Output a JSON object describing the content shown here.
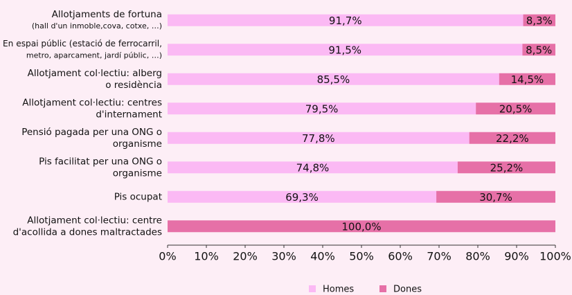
{
  "chart_data": {
    "type": "stacked-barh",
    "categories": [
      [
        "Allotjaments de fortuna",
        "(hall d'un inmoble,cova, cotxe, …)"
      ],
      [
        "En espai públic (estació de ferrocarril,",
        "metro, aparcament, jardí públic, …)"
      ],
      [
        "Allotjament col·lectiu: alberg",
        "o residència"
      ],
      [
        "Allotjament col·lectiu: centres",
        "d'internament"
      ],
      [
        "Pensió pagada per una ONG o",
        "organisme"
      ],
      [
        "Pis facilitat per una ONG o",
        "organisme"
      ],
      [
        "Pis ocupat"
      ],
      [
        "Allotjament col·lectiu: centre",
        "d'acollida a dones maltractades"
      ]
    ],
    "series": [
      {
        "name": "Homes",
        "color": "#fbb9f4",
        "values": [
          91.7,
          91.5,
          85.5,
          79.5,
          77.8,
          74.8,
          69.3,
          0
        ],
        "value_labels": [
          "91,7%",
          "91,5%",
          "85,5%",
          "79,5%",
          "77,8%",
          "74,8%",
          "69,3%",
          null
        ]
      },
      {
        "name": "Dones",
        "color": "#e670a7",
        "values": [
          8.3,
          8.5,
          14.5,
          20.5,
          22.2,
          25.2,
          30.7,
          100
        ],
        "value_labels": [
          "8,3%",
          "8,5%",
          "14,5%",
          "20,5%",
          "22,2%",
          "25,2%",
          "30,7%",
          "100,0%"
        ]
      }
    ],
    "xlim": [
      0,
      100
    ],
    "xticks": [
      {
        "value": 0,
        "label": "0%"
      },
      {
        "value": 10,
        "label": "10%"
      },
      {
        "value": 20,
        "label": "20%"
      },
      {
        "value": 30,
        "label": "30%"
      },
      {
        "value": 40,
        "label": "40%"
      },
      {
        "value": 50,
        "label": "50%"
      },
      {
        "value": 60,
        "label": "60%"
      },
      {
        "value": 70,
        "label": "70%"
      },
      {
        "value": 80,
        "label": "80%"
      },
      {
        "value": 90,
        "label": "90%"
      },
      {
        "value": 100,
        "label": "100%"
      }
    ],
    "legend": "bottom"
  }
}
